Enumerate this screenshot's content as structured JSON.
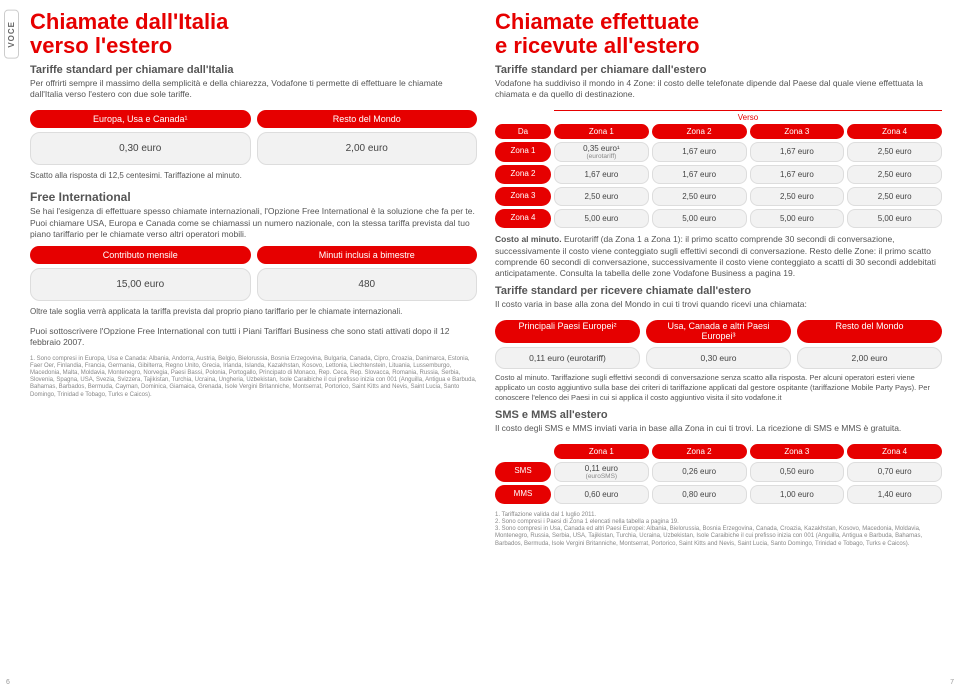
{
  "colors": {
    "brand_red": "#e60000",
    "cell_bg": "#f2f2f2",
    "cell_border": "#dddddd",
    "text_body": "#555555",
    "text_muted": "#888888",
    "page_bg": "#ffffff"
  },
  "side_tab": "VOCE",
  "left": {
    "title_l1": "Chiamate dall'Italia",
    "title_l2": "verso l'estero",
    "subtitle": "Tariffe standard per chiamare dall'Italia",
    "intro": "Per offrirti sempre il massimo della semplicità e della chiarezza, Vodafone ti permette di effettuare le chiamate dall'Italia verso l'estero con due sole tariffe.",
    "table1": {
      "headers": [
        "Europa, Usa e Canada¹",
        "Resto del Mondo"
      ],
      "values": [
        "0,30 euro",
        "2,00 euro"
      ]
    },
    "scatto_note": "Scatto alla risposta di 12,5 centesimi. Tariffazione al minuto.",
    "free_intl": {
      "title": "Free International",
      "para": "Se hai l'esigenza di effettuare spesso chiamate internazionali, l'Opzione Free International è la soluzione che fa per te. Puoi chiamare USA, Europa e Canada come se chiamassi un numero nazionale, con la stessa tariffa prevista dal tuo piano tariffario per le chiamate verso altri operatori mobili.",
      "headers": [
        "Contributo mensile",
        "Minuti inclusi a bimestre"
      ],
      "values": [
        "15,00 euro",
        "480"
      ],
      "note1": "Oltre tale soglia verrà applicata la tariffa prevista dal proprio piano tariffario per le chiamate internazionali.",
      "note2": "Puoi sottoscrivere l'Opzione Free International con tutti i Piani Tariffari Business che sono stati attivati dopo il 12 febbraio 2007."
    },
    "footnote": "1. Sono compresi in Europa, Usa e Canada: Albania, Andorra, Austria, Belgio, Bielorussia, Bosnia Erzegovina, Bulgaria, Canada, Cipro, Croazia, Danimarca, Estonia, Faer Oer, Finlandia, Francia, Germania, Gibilterra, Regno Unito, Grecia, Irlanda, Islanda, Kazakhstan, Kosovo, Lettonia, Liechtenstein, Lituania, Lussemburgo, Macedonia, Malta, Moldavia, Montenegro, Norvegia, Paesi Bassi, Polonia, Portogallo, Principato di Monaco, Rep. Ceca, Rep. Slovacca, Romania, Russia, Serbia, Slovenia, Spagna, USA, Svezia, Svizzera, Tajikistan, Turchia, Ucraina, Ungheria, Uzbekistan, Isole Caraibiche il cui prefisso inizia con 001 (Anguilla, Antigua e Barbuda, Bahamas, Barbados, Bermuda, Cayman, Dominica, Giamaica, Grenada, Isole Vergini Britanniche, Montserrat, Portorico, Saint Kitts and Nevis, Saint Lucia, Santo Domingo, Trinidad e Tobago, Turks e Caicos)."
  },
  "right": {
    "title_l1": "Chiamate effettuate",
    "title_l2": "e ricevute all'estero",
    "subtitle": "Tariffe standard per chiamare dall'estero",
    "intro": "Vodafone ha suddiviso il mondo in 4 Zone: il costo delle telefonate dipende dal Paese dal quale viene effettuata la chiamata e da quello di destinazione.",
    "zone_table": {
      "da_label": "Da",
      "verso_label": "Verso",
      "col_headers": [
        "Zona 1",
        "Zona 2",
        "Zona 3",
        "Zona 4"
      ],
      "rows": [
        {
          "label": "Zona 1",
          "cells": [
            "0,35 euro¹",
            "1,67 euro",
            "1,67 euro",
            "2,50 euro"
          ],
          "sub": "(eurotariff)"
        },
        {
          "label": "Zona 2",
          "cells": [
            "1,67 euro",
            "1,67 euro",
            "1,67 euro",
            "2,50 euro"
          ]
        },
        {
          "label": "Zona 3",
          "cells": [
            "2,50 euro",
            "2,50 euro",
            "2,50 euro",
            "2,50 euro"
          ]
        },
        {
          "label": "Zona 4",
          "cells": [
            "5,00 euro",
            "5,00 euro",
            "5,00 euro",
            "5,00 euro"
          ]
        }
      ]
    },
    "costo_minuto_title": "Costo al minuto.",
    "costo_minuto_text": "Eurotariff (da Zona 1 a Zona 1): il primo scatto comprende 30 secondi di conversazione, successivamente il costo viene conteggiato sugli effettivi secondi di conversazione. Resto delle Zone: il primo scatto comprende 60 secondi di conversazione, successivamente il costo viene conteggiato a scatti di 30 secondi addebitati anticipatamente. Consulta la tabella delle zone Vodafone Business a pagina 19.",
    "ricevere_title": "Tariffe standard per ricevere chiamate dall'estero",
    "ricevere_intro": "Il costo varia in base alla zona del Mondo in cui ti trovi quando ricevi una chiamata:",
    "ricevere_table": {
      "headers": [
        "Principali Paesi Europei²",
        "Usa, Canada e altri Paesi Europei³",
        "Resto del Mondo"
      ],
      "values": [
        "0,11 euro (eurotariff)",
        "0,30 euro",
        "2,00 euro"
      ]
    },
    "ricevere_note": "Costo al minuto. Tariffazione sugli effettivi secondi di conversazione senza scatto alla risposta. Per alcuni operatori esteri viene applicato un costo aggiuntivo sulla base dei criteri di tariffazione applicati dal gestore ospitante (tariffazione Mobile Party Pays). Per conoscere l'elenco dei Paesi in cui si applica il costo aggiuntivo visita il sito vodafone.it",
    "sms_title": "SMS e MMS all'estero",
    "sms_intro": "Il costo degli SMS e MMS inviati varia in base alla Zona in cui ti trovi. La ricezione di SMS e MMS è gratuita.",
    "sms_table": {
      "col_headers": [
        "Zona 1",
        "Zona 2",
        "Zona 3",
        "Zona 4"
      ],
      "rows": [
        {
          "label": "SMS",
          "cells": [
            "0,11 euro",
            "0,26 euro",
            "0,50 euro",
            "0,70 euro"
          ],
          "sub": "(euroSMS)"
        },
        {
          "label": "MMS",
          "cells": [
            "0,60 euro",
            "0,80 euro",
            "1,00 euro",
            "1,40 euro"
          ]
        }
      ]
    },
    "footnote": "1. Tariffazione valida dal 1 luglio 2011.\n2. Sono compresi i Paesi di Zona 1 elencati nella tabella a pagina 19.\n3. Sono compresi in Usa, Canada ed altri Paesi Europei: Albania, Bielorussia, Bosnia Erzegovina, Canada, Croazia, Kazakhstan, Kosovo, Macedonia, Moldavia, Montenegro, Russia, Serbia, USA, Tajikistan, Turchia, Ucraina, Uzbekistan, Isole Caraibiche il cui prefisso inizia con 001 (Anguilla, Antigua e Barbuda, Bahamas, Barbados, Bermuda, Isole Vergini Britanniche, Montserrat, Portorico, Saint Kitts and Nevis, Saint Lucia, Santo Domingo, Trinidad e Tobago, Turks e Caicos)."
  },
  "pagenum_left": "6",
  "pagenum_right": "7"
}
